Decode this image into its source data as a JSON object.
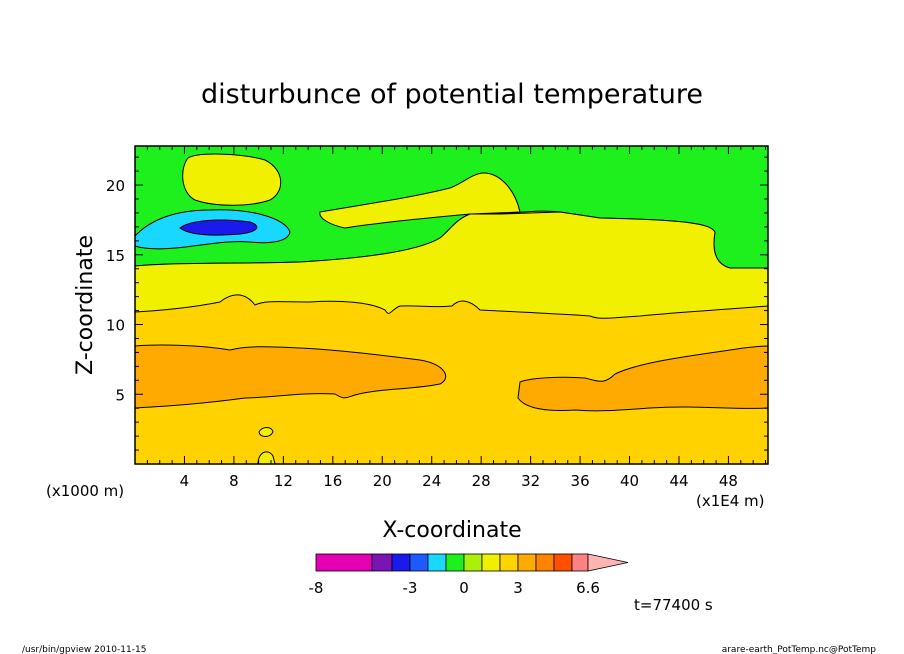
{
  "chart_data": {
    "type": "contour",
    "title": "disturbunce of potential temperature",
    "xlabel": "X-coordinate",
    "ylabel": "Z-coordinate",
    "x_unit_left": "(x1000 m)",
    "x_unit_right": "(x1E4 m)",
    "xlim": [
      0,
      51.2
    ],
    "ylim": [
      0,
      22.8
    ],
    "x_ticks": [
      "4",
      "8",
      "12",
      "16",
      "20",
      "24",
      "28",
      "32",
      "36",
      "40",
      "44",
      "48"
    ],
    "y_ticks": [
      "5",
      "10",
      "15",
      "20"
    ],
    "time_label": "t=77400 s",
    "colorbar": {
      "colors": [
        "#e600b4",
        "#e600b4",
        "#e600b4",
        "#7a14b4",
        "#1a1aec",
        "#1e5aff",
        "#18d8ff",
        "#1ef01e",
        "#aaf00a",
        "#f0f000",
        "#ffd200",
        "#ffaa00",
        "#ff8200",
        "#ff5000",
        "#ff1e1e",
        "#ff8282"
      ],
      "extend_color": "#ffb4b4",
      "labels": [
        "-8",
        "-3",
        "0",
        "3",
        "6.6"
      ]
    },
    "regions": [
      {
        "name": "upper-green",
        "level": "0 to 1",
        "color": "#1ef01e"
      },
      {
        "name": "upper-yellow-band",
        "level": "1 to 2",
        "color": "#f0f000"
      },
      {
        "name": "middle-gold-band",
        "level": "2 to 3",
        "color": "#ffd200"
      },
      {
        "name": "orange-core",
        "level": "3 to 4",
        "color": "#ffaa00"
      },
      {
        "name": "cyan-anomaly",
        "level": "-1 to 0",
        "color": "#18d8ff"
      },
      {
        "name": "blue-core",
        "level": "-2 to -1",
        "color": "#1a1aec"
      }
    ]
  },
  "footer": {
    "left": "/usr/bin/gpview   2010-11-15",
    "right": "arare-earth_PotTemp.nc@PotTemp"
  }
}
